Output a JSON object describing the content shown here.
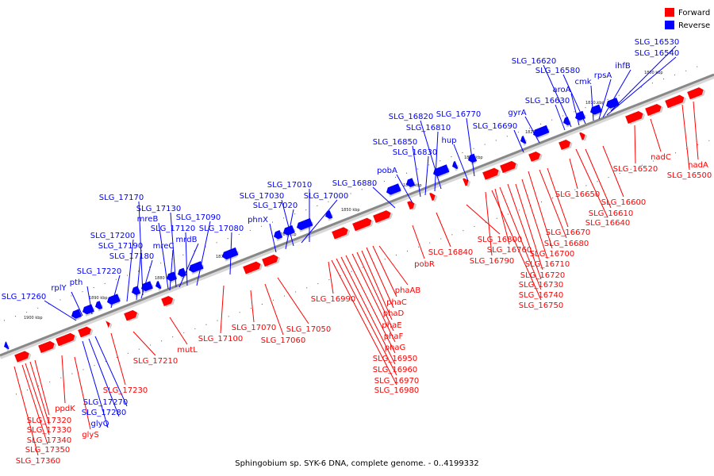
{
  "caption": "Sphingobium sp. SYK-6 DNA, complete genome. - 0..4199332",
  "legend": [
    {
      "label": "Forward",
      "color": "#ff0000"
    },
    {
      "label": "Reverse",
      "color": "#0000ff"
    }
  ],
  "colors": {
    "forward": "#ff0000",
    "reverse": "#0000ff",
    "backbone": "#888888"
  },
  "ticks": [
    "1800 kbp",
    "1810 kbp",
    "1820 kbp",
    "1830 kbp",
    "1840 kbp",
    "1850 kbp",
    "1860 kbp",
    "1870 kbp",
    "1880 kbp",
    "1890 kbp",
    "1900 kbp"
  ],
  "reverse_labels": [
    "SLG_16530",
    "SLG_16540",
    "ihfB",
    "rpsA",
    "cmk",
    "SLG_16580",
    "aroA",
    "SLG_16620",
    "SLG_16630",
    "SLG_16690",
    "gyrA",
    "SLG_16770",
    "SLG_16820",
    "SLG_16810",
    "hup",
    "SLG_16850",
    "SLG_16830",
    "pobA",
    "SLG_16880",
    "SLG_17010",
    "SLG_17000",
    "SLG_17030",
    "SLG_17020",
    "phnX",
    "SLG_17170",
    "SLG_17130",
    "mreB",
    "SLG_17090",
    "SLG_17120",
    "mrdB",
    "SLG_17080",
    "SLG_17200",
    "SLG_17190",
    "mreC",
    "SLG_17180",
    "SLG_17220",
    "pth",
    "rplY",
    "SLG_17260",
    "SLG_17270",
    "glyQ",
    "SLG_17280"
  ],
  "forward_labels": [
    "nadA",
    "SLG_16500",
    "nadC",
    "SLG_16520",
    "SLG_16600",
    "SLG_16610",
    "SLG_16640",
    "SLG_16650",
    "SLG_16670",
    "SLG_16680",
    "SLG_16700",
    "SLG_16710",
    "SLG_16720",
    "SLG_16730",
    "SLG_16740",
    "SLG_16750",
    "SLG_16760",
    "SLG_16790",
    "SLG_16800",
    "SLG_16840",
    "pobR",
    "phaAB",
    "phaC",
    "phaD",
    "phaE",
    "phaF",
    "phaG",
    "SLG_16950",
    "SLG_16960",
    "SLG_16970",
    "SLG_16980",
    "SLG_16990",
    "SLG_17050",
    "SLG_17060",
    "SLG_17070",
    "SLG_17100",
    "mutL",
    "SLG_17210",
    "SLG_17230",
    "ppdK",
    "glyS",
    "SLG_17320",
    "SLG_17330",
    "SLG_17340",
    "SLG_17350",
    "SLG_17360"
  ]
}
